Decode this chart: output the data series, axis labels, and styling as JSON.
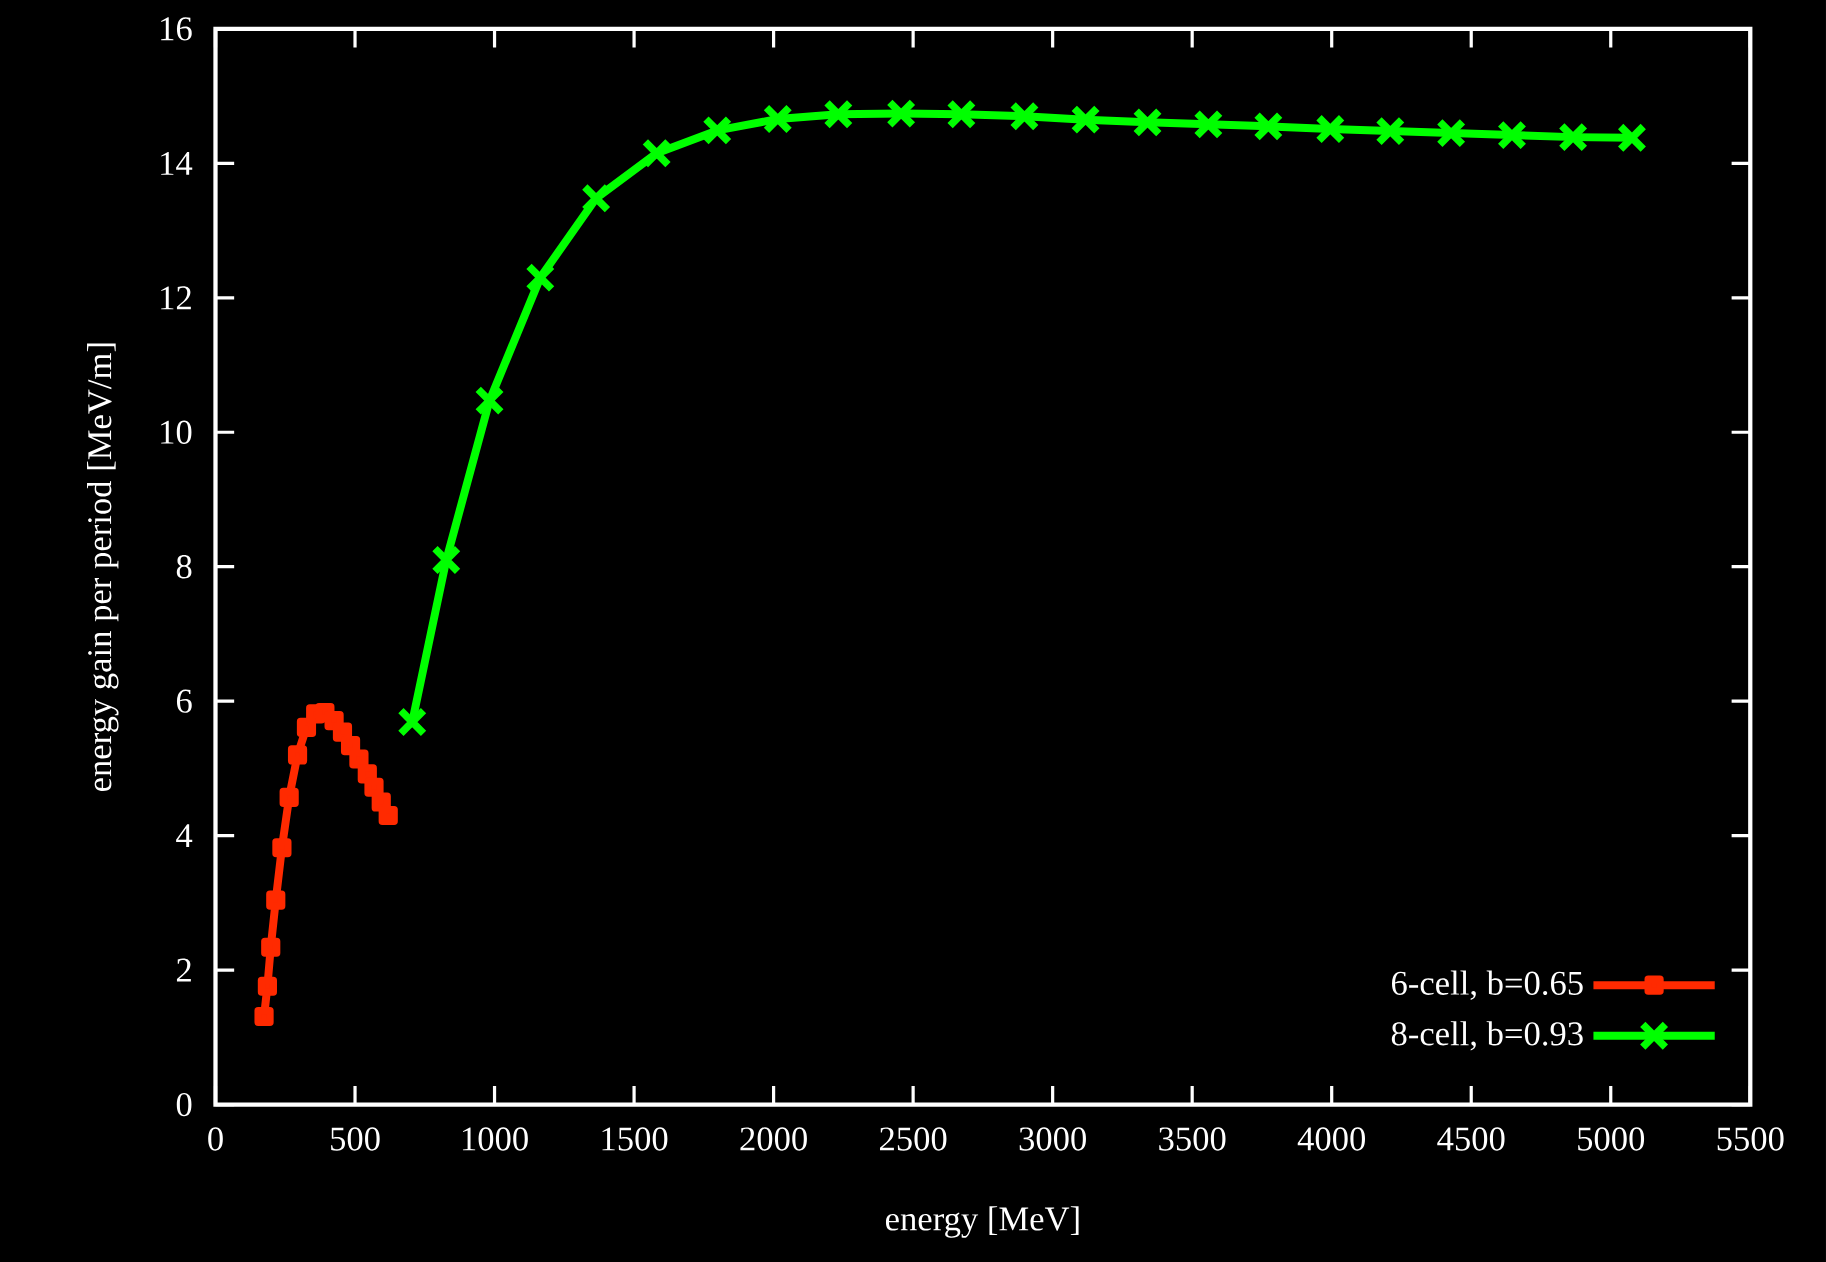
{
  "chart_data": {
    "type": "line",
    "xlabel": "energy [MeV]",
    "ylabel": "energy gain per period [MeV/m]",
    "xlim": [
      0,
      5500
    ],
    "xticks": [
      0,
      500,
      1000,
      1500,
      2000,
      2500,
      3000,
      3500,
      4000,
      4500,
      5000,
      5500
    ],
    "ylim": [
      0,
      16
    ],
    "yticks": [
      0,
      2,
      4,
      6,
      8,
      10,
      12,
      14,
      16
    ],
    "legend": "bottom right",
    "grid": false,
    "line_style": "solid",
    "series": [
      {
        "name": "6-cell, b=0.65",
        "color": "#ff2a00",
        "marker": "square",
        "x": [
          174,
          186,
          198,
          216,
          238,
          264,
          294,
          326,
          359,
          392,
          425,
          455,
          484,
          514,
          544,
          568,
          594,
          619
        ],
        "values": [
          1.31,
          1.76,
          2.34,
          3.04,
          3.82,
          4.57,
          5.2,
          5.61,
          5.81,
          5.83,
          5.71,
          5.54,
          5.34,
          5.14,
          4.92,
          4.72,
          4.5,
          4.3
        ]
      },
      {
        "name": "8-cell, b=0.93",
        "color": "#00ff00",
        "marker": "cross",
        "x": [
          705,
          827,
          982,
          1164,
          1364,
          1581,
          1798,
          2015,
          2232,
          2457,
          2673,
          2899,
          3118,
          3340,
          3558,
          3773,
          3995,
          4210,
          4428,
          4646,
          4865,
          5076
        ],
        "values": [
          5.69,
          8.1,
          10.47,
          12.3,
          13.48,
          14.15,
          14.49,
          14.66,
          14.73,
          14.74,
          14.73,
          14.7,
          14.65,
          14.61,
          14.58,
          14.55,
          14.51,
          14.48,
          14.45,
          14.42,
          14.39,
          14.38
        ]
      }
    ]
  }
}
